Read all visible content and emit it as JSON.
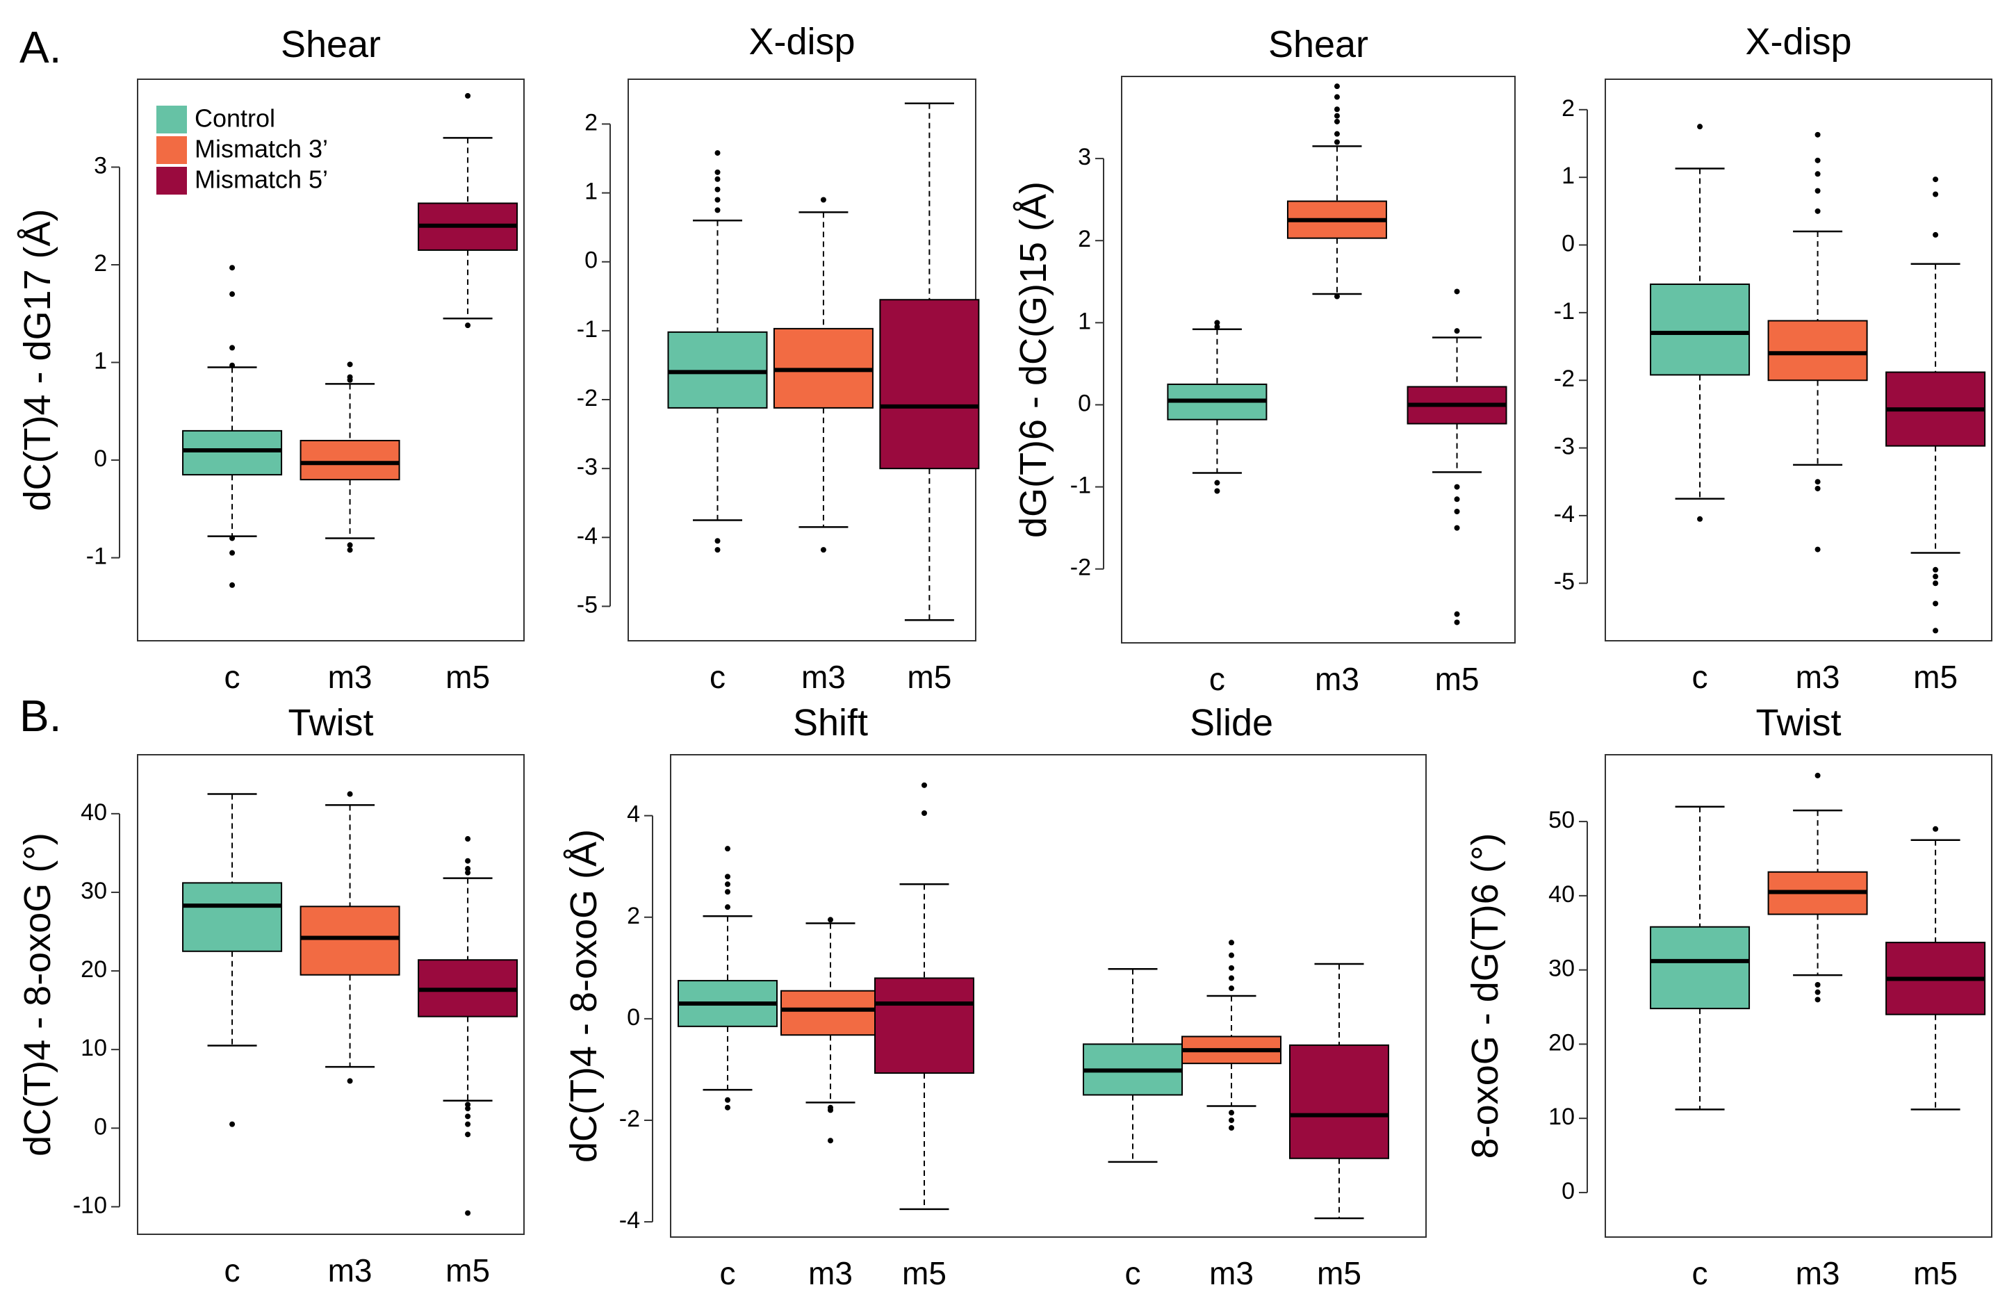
{
  "section_labels": [
    "A.",
    "B."
  ],
  "legend": {
    "items": [
      {
        "label": "Control",
        "color": "#66c2a5"
      },
      {
        "label": "Mismatch 3’",
        "color": "#f26b43"
      },
      {
        "label": "Mismatch 5’",
        "color": "#9a0a3e"
      }
    ]
  },
  "colors": {
    "c": "#66c2a5",
    "m3": "#f26b43",
    "m5": "#9a0a3e"
  },
  "chart_data": [
    {
      "id": "a1",
      "type": "box",
      "title": "Shear",
      "ylabel": "dC(T)4 - dG17 (Å)",
      "ylim": [
        -1.85,
        3.9
      ],
      "yticks": [
        -1,
        0,
        1,
        2,
        3
      ],
      "groups": [
        {
          "title": "",
          "boxes": [
            {
              "label": "c",
              "color": "c",
              "min": -0.78,
              "q1": -0.15,
              "median": 0.1,
              "q3": 0.3,
              "max": 0.95,
              "outliers": [
                -0.95,
                -1.28,
                1.15,
                1.7,
                1.97,
                0.97,
                -0.8
              ]
            },
            {
              "label": "m3",
              "color": "m3",
              "min": -0.8,
              "q1": -0.2,
              "median": -0.03,
              "q3": 0.2,
              "max": 0.78,
              "outliers": [
                -0.87,
                -0.92,
                0.85,
                0.98,
                0.82
              ]
            },
            {
              "label": "m5",
              "color": "m5",
              "min": 1.45,
              "q1": 2.15,
              "median": 2.4,
              "q3": 2.63,
              "max": 3.3,
              "outliers": [
                3.73,
                1.38
              ]
            }
          ]
        }
      ]
    },
    {
      "id": "a2",
      "type": "box",
      "title": "X-disp",
      "ylabel": "",
      "ylim": [
        -5.5,
        2.65
      ],
      "yticks": [
        -5,
        -4,
        -3,
        -2,
        -1,
        0,
        1,
        2
      ],
      "groups": [
        {
          "title": "",
          "boxes": [
            {
              "label": "c",
              "color": "c",
              "min": -3.75,
              "q1": -2.12,
              "median": -1.6,
              "q3": -1.02,
              "max": 0.6,
              "outliers": [
                -4.05,
                -4.18,
                0.75,
                0.9,
                1.05,
                1.3,
                1.58,
                1.2
              ]
            },
            {
              "label": "m3",
              "color": "m3",
              "min": -3.85,
              "q1": -2.12,
              "median": -1.57,
              "q3": -0.97,
              "max": 0.72,
              "outliers": [
                -4.18,
                0.9
              ]
            },
            {
              "label": "m5",
              "color": "m5",
              "min": -5.2,
              "q1": -3.0,
              "median": -2.1,
              "q3": -0.55,
              "max": 2.3,
              "outliers": []
            }
          ]
        }
      ]
    },
    {
      "id": "a3",
      "type": "box",
      "title": "Shear",
      "ylabel": "dG(T)6 - dC(G)15 (Å)",
      "ylim": [
        -2.9,
        4.0
      ],
      "yticks": [
        -2,
        -1,
        0,
        1,
        2,
        3
      ],
      "groups": [
        {
          "title": "",
          "boxes": [
            {
              "label": "c",
              "color": "c",
              "min": -0.83,
              "q1": -0.18,
              "median": 0.05,
              "q3": 0.25,
              "max": 0.92,
              "outliers": [
                -0.95,
                -1.05,
                1.0,
                0.95
              ]
            },
            {
              "label": "m3",
              "color": "m3",
              "min": 1.35,
              "q1": 2.03,
              "median": 2.25,
              "q3": 2.48,
              "max": 3.15,
              "outliers": [
                1.32,
                3.3,
                3.45,
                3.6,
                3.75,
                3.88,
                3.2,
                3.52
              ]
            },
            {
              "label": "m5",
              "color": "m5",
              "min": -0.82,
              "q1": -0.23,
              "median": 0.0,
              "q3": 0.22,
              "max": 0.82,
              "outliers": [
                -1.0,
                -1.3,
                -1.5,
                -2.55,
                -2.65,
                0.9,
                1.38,
                -1.15
              ]
            }
          ]
        }
      ]
    },
    {
      "id": "a4",
      "type": "box",
      "title": "X-disp",
      "ylabel": "",
      "ylim": [
        -5.85,
        2.45
      ],
      "yticks": [
        -5,
        -4,
        -3,
        -2,
        -1,
        0,
        1,
        2
      ],
      "groups": [
        {
          "title": "",
          "boxes": [
            {
              "label": "c",
              "color": "c",
              "min": -3.75,
              "q1": -1.92,
              "median": -1.3,
              "q3": -0.58,
              "max": 1.13,
              "outliers": [
                -4.05,
                1.75
              ]
            },
            {
              "label": "m3",
              "color": "m3",
              "min": -3.25,
              "q1": -2.0,
              "median": -1.6,
              "q3": -1.12,
              "max": 0.2,
              "outliers": [
                -3.5,
                -3.6,
                -4.5,
                0.5,
                0.8,
                1.05,
                1.25,
                1.63
              ]
            },
            {
              "label": "m5",
              "color": "m5",
              "min": -4.55,
              "q1": -2.97,
              "median": -2.43,
              "q3": -1.88,
              "max": -0.28,
              "outliers": [
                -4.8,
                -5.0,
                -5.3,
                -5.7,
                0.15,
                0.75,
                0.97,
                -4.9
              ]
            }
          ]
        }
      ]
    },
    {
      "id": "b1",
      "type": "box",
      "title": "Twist",
      "ylabel": "dC(T)4 - 8-oxoG (°)",
      "ylim": [
        -13.5,
        47.5
      ],
      "yticks": [
        -10,
        0,
        10,
        20,
        30,
        40
      ],
      "groups": [
        {
          "title": "",
          "boxes": [
            {
              "label": "c",
              "color": "c",
              "min": 10.5,
              "q1": 22.5,
              "median": 28.3,
              "q3": 31.2,
              "max": 42.5,
              "outliers": [
                0.5
              ]
            },
            {
              "label": "m3",
              "color": "m3",
              "min": 7.8,
              "q1": 19.5,
              "median": 24.2,
              "q3": 28.2,
              "max": 41.1,
              "outliers": [
                6.0,
                42.5
              ]
            },
            {
              "label": "m5",
              "color": "m5",
              "min": 3.5,
              "q1": 14.2,
              "median": 17.6,
              "q3": 21.4,
              "max": 31.8,
              "outliers": [
                -0.8,
                0.5,
                1.5,
                2.5,
                3.0,
                -10.8,
                33.0,
                34.0,
                36.8,
                32.5
              ]
            }
          ]
        }
      ]
    },
    {
      "id": "b2",
      "type": "box",
      "title": "Shift",
      "ylabel": "dC(T)4 - 8-oxoG (Å)",
      "ylim": [
        -4.3,
        5.2
      ],
      "yticks": [
        -4,
        -2,
        0,
        2,
        4
      ],
      "groups": [
        {
          "title": "Shift",
          "boxes": [
            {
              "label": "c",
              "color": "c",
              "min": -1.4,
              "q1": -0.15,
              "median": 0.3,
              "q3": 0.75,
              "max": 2.02,
              "outliers": [
                -1.6,
                -1.75,
                2.2,
                2.5,
                2.8,
                3.35,
                2.65
              ]
            },
            {
              "label": "m3",
              "color": "m3",
              "min": -1.65,
              "q1": -0.32,
              "median": 0.18,
              "q3": 0.55,
              "max": 1.88,
              "outliers": [
                -1.8,
                -2.4,
                1.95,
                -1.75
              ]
            },
            {
              "label": "m5",
              "color": "m5",
              "min": -3.75,
              "q1": -1.07,
              "median": 0.3,
              "q3": 0.8,
              "max": 2.65,
              "outliers": [
                4.05,
                4.6
              ]
            }
          ]
        },
        {
          "title": "Slide",
          "boxes": [
            {
              "label": "c",
              "color": "c",
              "min": -2.82,
              "q1": -1.5,
              "median": -1.02,
              "q3": -0.5,
              "max": 0.98,
              "outliers": []
            },
            {
              "label": "m3",
              "color": "m3",
              "min": -1.72,
              "q1": -0.88,
              "median": -0.62,
              "q3": -0.35,
              "max": 0.45,
              "outliers": [
                -1.85,
                -2.0,
                -2.15,
                0.6,
                0.8,
                1.0,
                1.25,
                1.5
              ]
            },
            {
              "label": "m5",
              "color": "m5",
              "min": -3.93,
              "q1": -2.75,
              "median": -1.9,
              "q3": -0.52,
              "max": 1.08,
              "outliers": []
            }
          ]
        }
      ]
    },
    {
      "id": "b3",
      "type": "box",
      "title": "Twist",
      "ylabel": "8-oxoG - dG(T)6 (°)",
      "ylim": [
        -6.0,
        59.0
      ],
      "yticks": [
        0,
        10,
        20,
        30,
        40,
        50
      ],
      "groups": [
        {
          "title": "",
          "boxes": [
            {
              "label": "c",
              "color": "c",
              "min": 11.2,
              "q1": 24.8,
              "median": 31.2,
              "q3": 35.8,
              "max": 52.0,
              "outliers": []
            },
            {
              "label": "m3",
              "color": "m3",
              "min": 29.3,
              "q1": 37.5,
              "median": 40.5,
              "q3": 43.2,
              "max": 51.5,
              "outliers": [
                26.0,
                27.0,
                28.0,
                56.2
              ]
            },
            {
              "label": "m5",
              "color": "m5",
              "min": 11.2,
              "q1": 24.0,
              "median": 28.8,
              "q3": 33.7,
              "max": 47.5,
              "outliers": [
                49.0
              ]
            }
          ]
        }
      ]
    }
  ]
}
